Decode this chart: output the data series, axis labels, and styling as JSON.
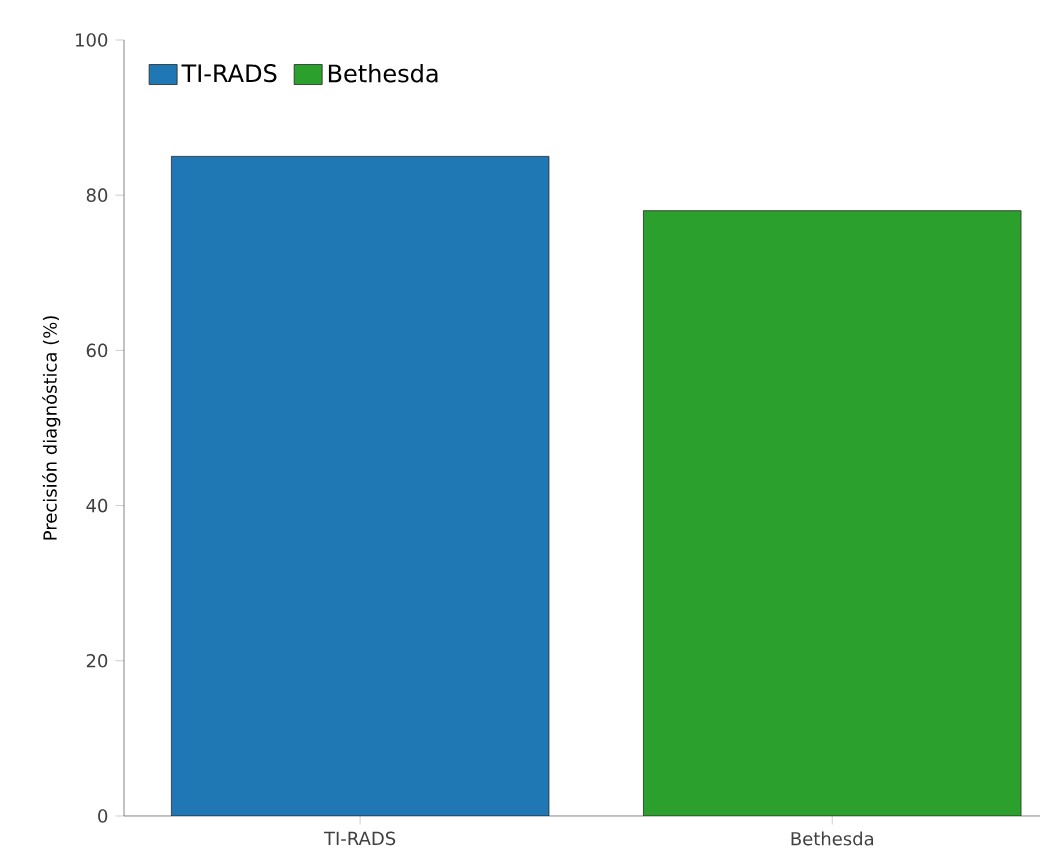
{
  "chart_data": {
    "type": "bar",
    "ylabel": "Precisión diagnóstica (%)",
    "categories": [
      "TI-RADS",
      "Bethesda"
    ],
    "series": [
      {
        "name": "TI-RADS",
        "color": "#1f77b4",
        "values": [
          85,
          null
        ]
      },
      {
        "name": "Bethesda",
        "color": "#2ca02c",
        "values": [
          null,
          78
        ]
      }
    ],
    "ylim": [
      0,
      100
    ],
    "yticks": [
      0,
      20,
      40,
      60,
      80,
      100
    ],
    "legend": "top left",
    "grid": false
  }
}
